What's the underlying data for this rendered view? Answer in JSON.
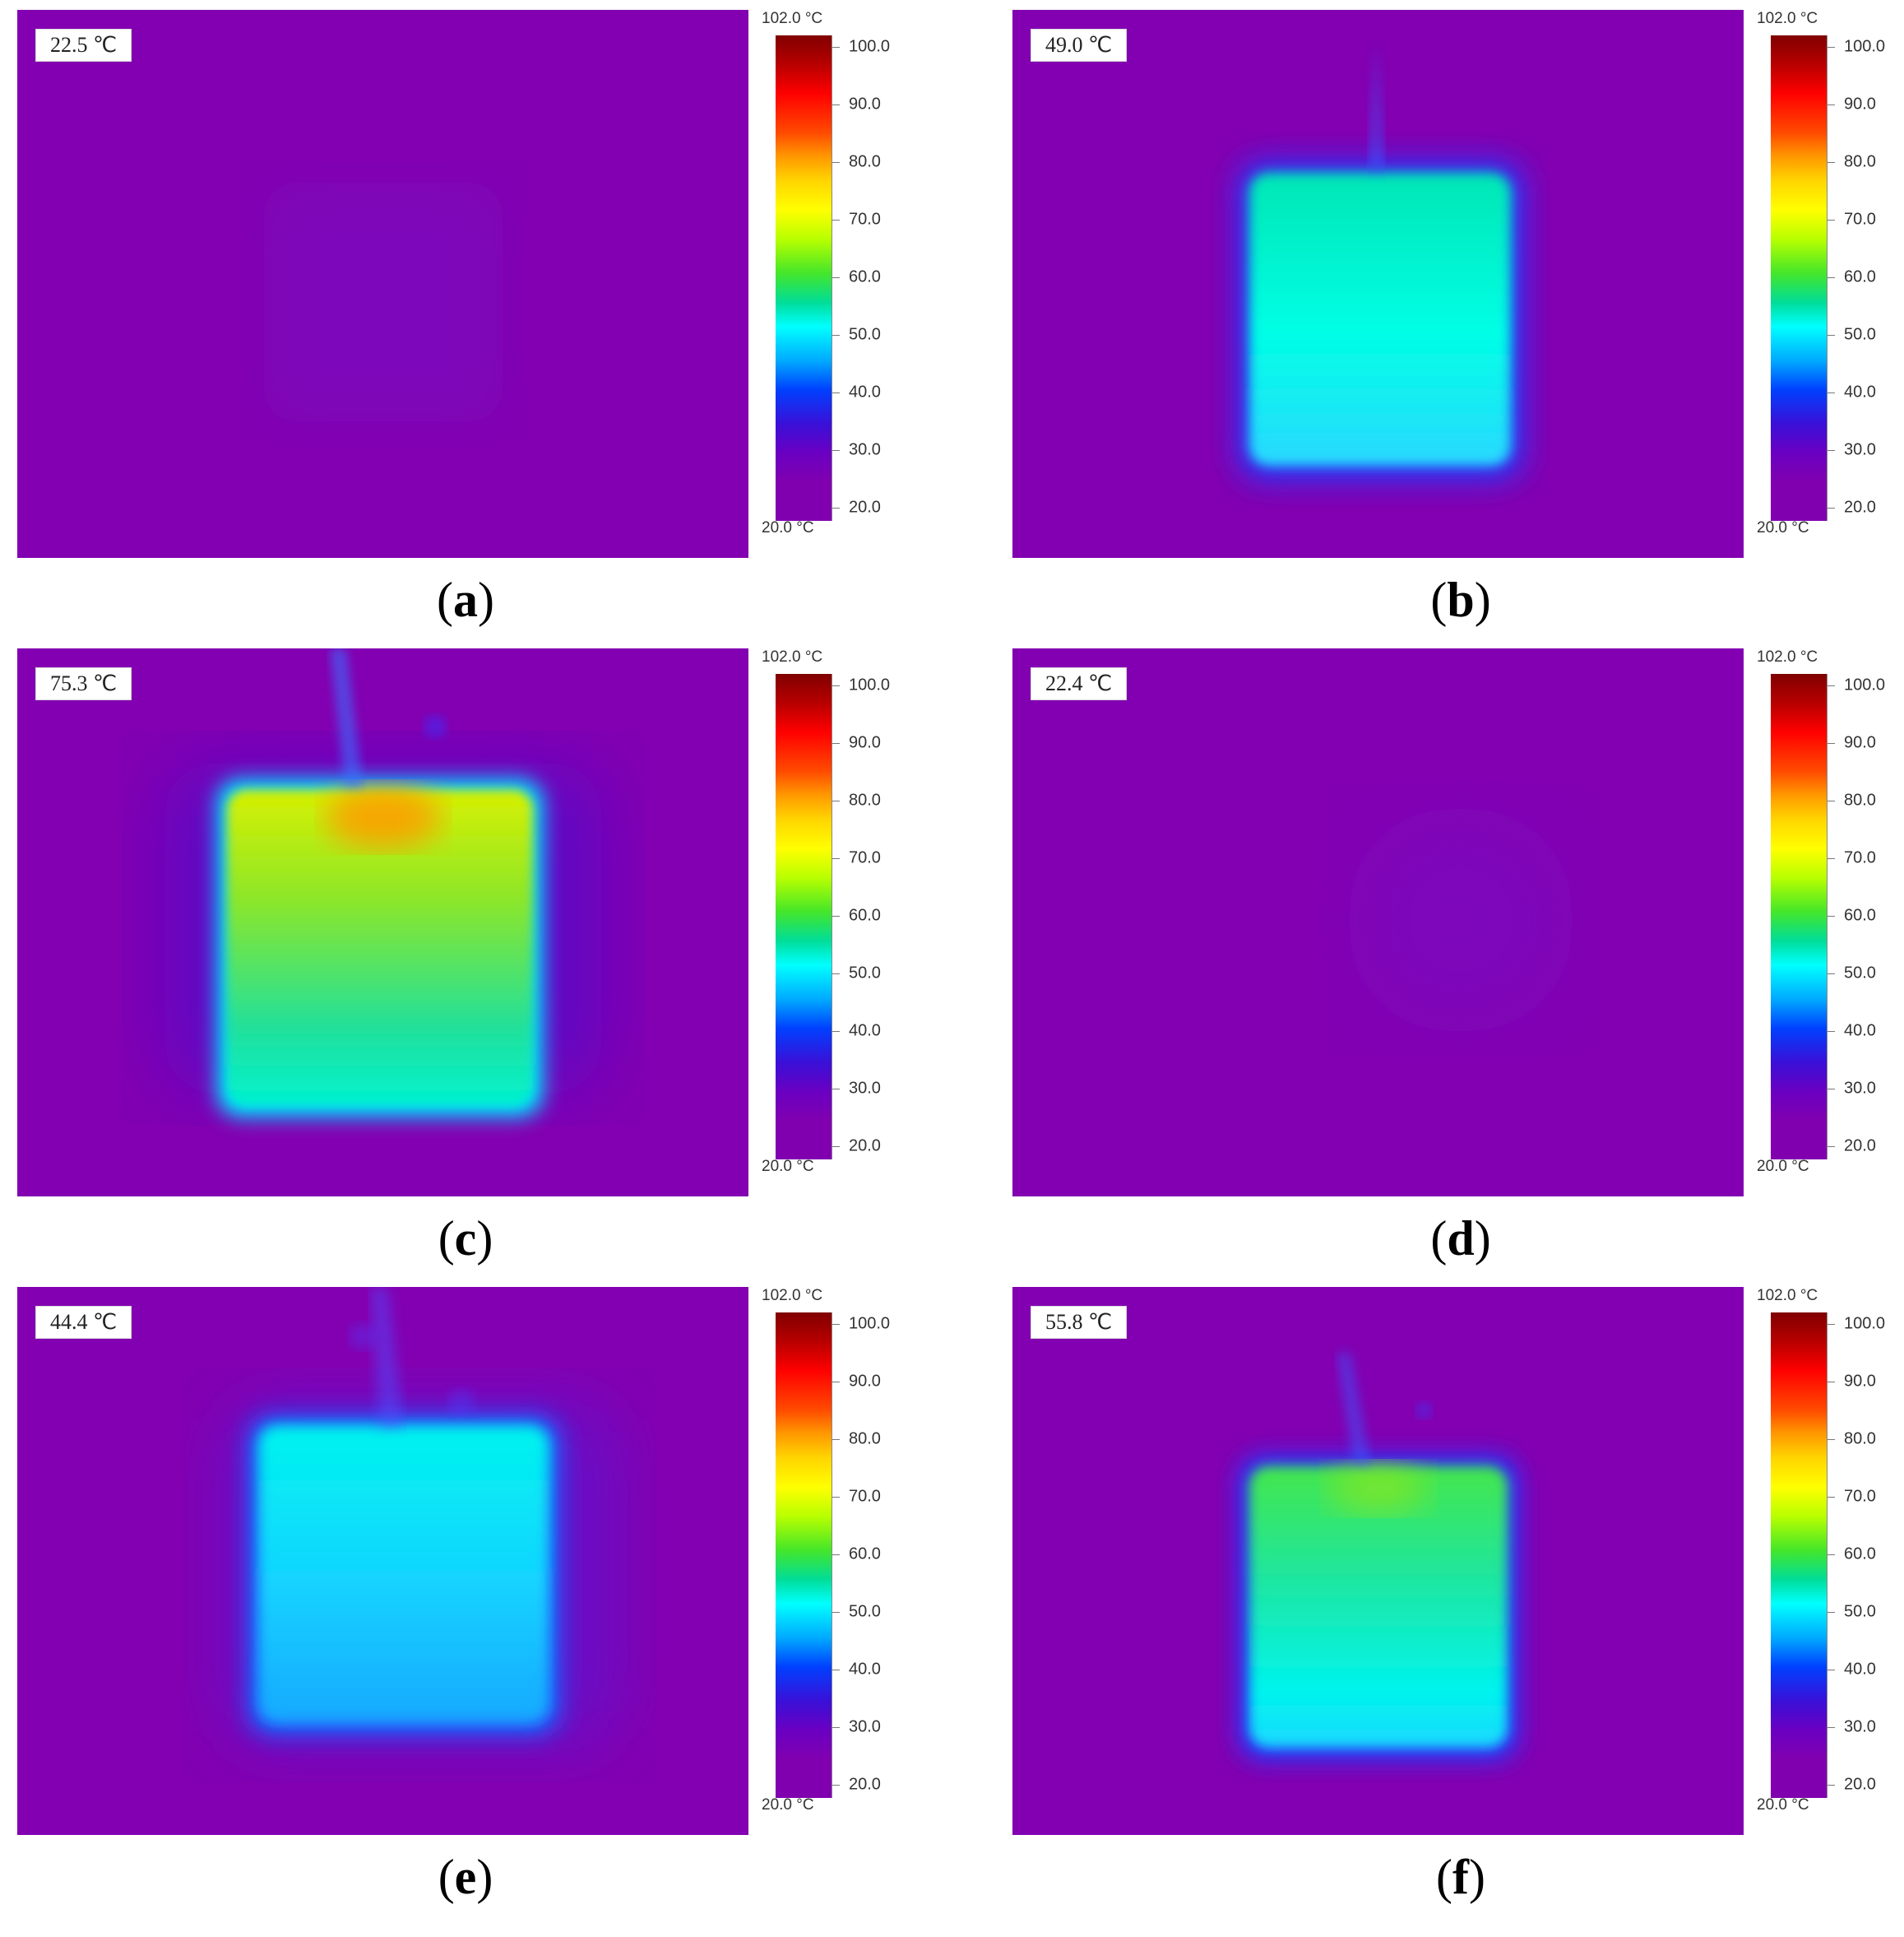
{
  "colors": {
    "background": "#8200b1",
    "scale_palette": "rainbow-thermal"
  },
  "scale": {
    "max_label": "102.0 °C",
    "min_label": "20.0 °C",
    "max": 102.0,
    "min": 20.0,
    "ticks": [
      "100.0",
      "90.0",
      "80.0",
      "70.0",
      "60.0",
      "50.0",
      "40.0",
      "30.0",
      "20.0"
    ]
  },
  "panels": [
    {
      "id": "a",
      "readout": "22.5 ℃",
      "caption_open": "(",
      "caption_letter": "a",
      "caption_close": ")"
    },
    {
      "id": "b",
      "readout": "49.0 ℃",
      "caption_open": "(",
      "caption_letter": "b",
      "caption_close": ")"
    },
    {
      "id": "c",
      "readout": "75.3 ℃",
      "caption_open": "(",
      "caption_letter": "c",
      "caption_close": ")"
    },
    {
      "id": "d",
      "readout": "22.4 ℃",
      "caption_open": "(",
      "caption_letter": "d",
      "caption_close": ")"
    },
    {
      "id": "e",
      "readout": "44.4 ℃",
      "caption_open": "(",
      "caption_letter": "e",
      "caption_close": ")"
    },
    {
      "id": "f",
      "readout": "55.8 ℃",
      "caption_open": "(",
      "caption_letter": "f",
      "caption_close": ")"
    }
  ]
}
